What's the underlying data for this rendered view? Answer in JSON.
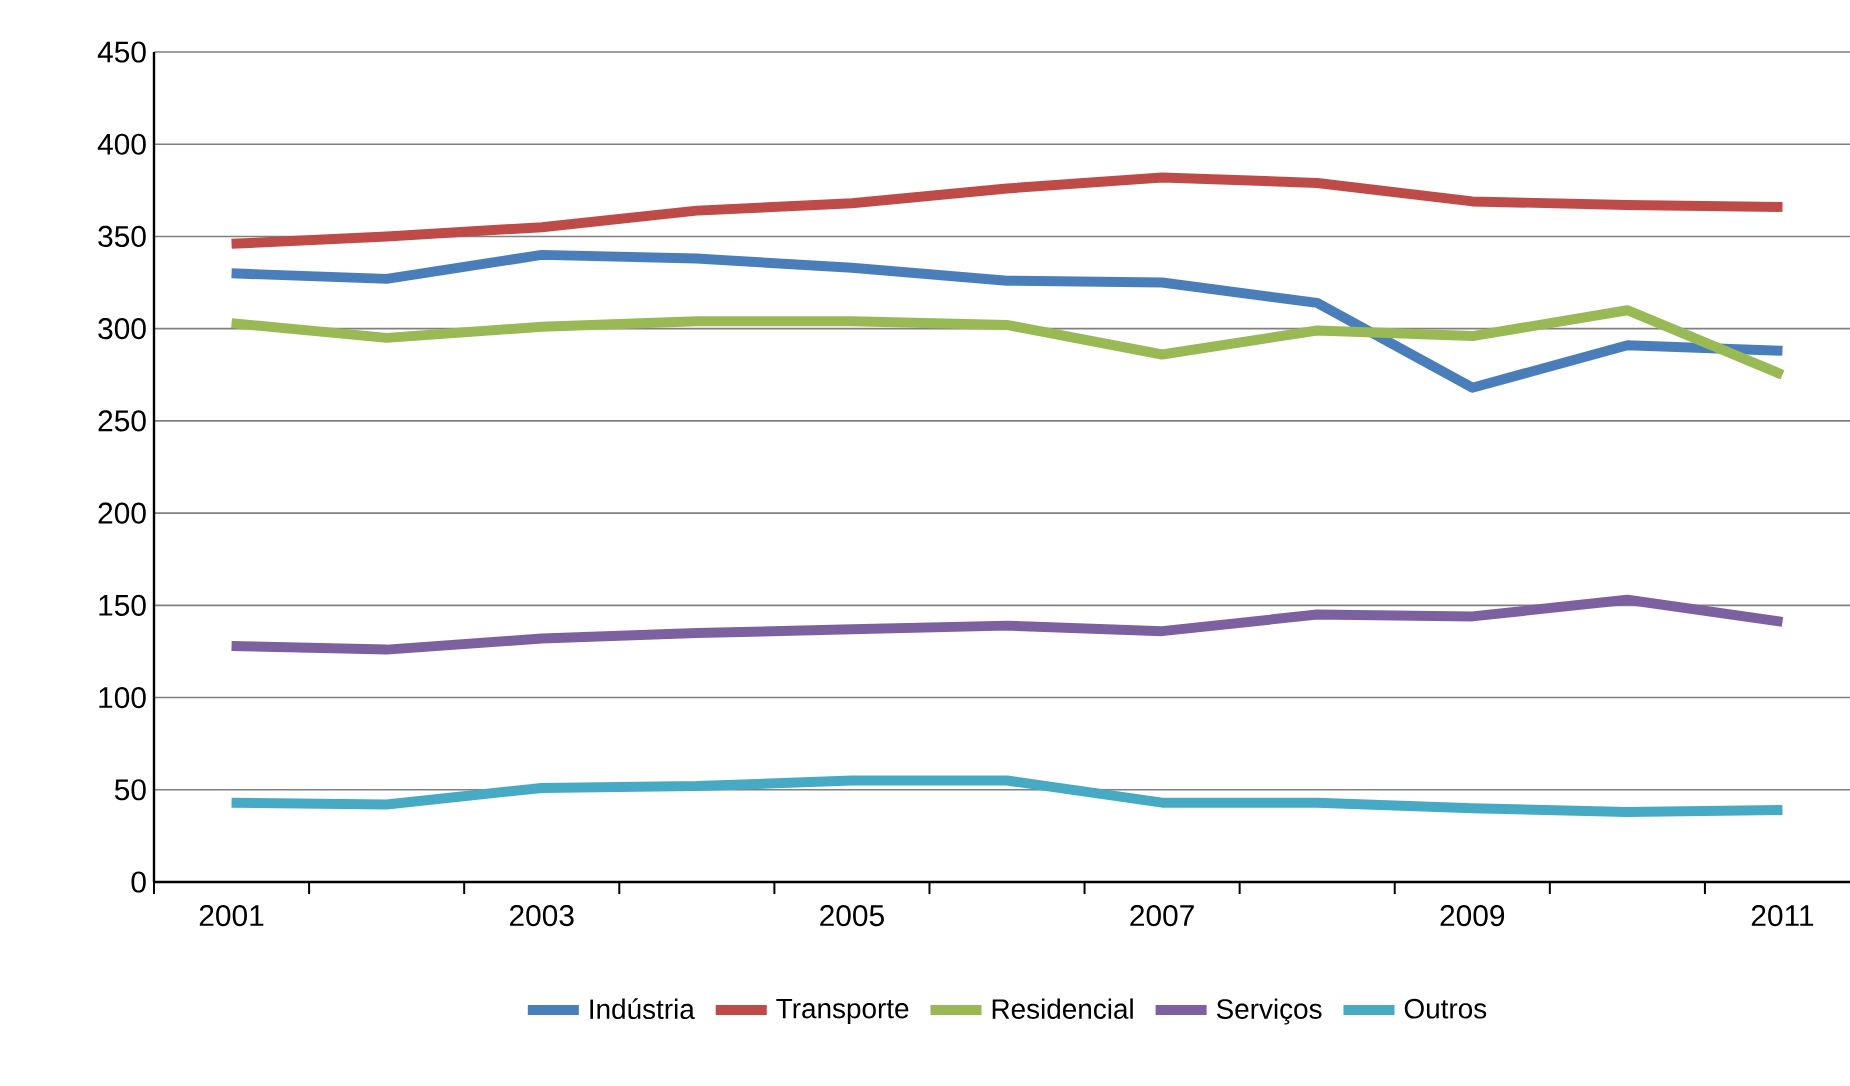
{
  "chart_data": {
    "type": "line",
    "categories": [
      "2001",
      null,
      "2003",
      null,
      "2005",
      null,
      "2007",
      null,
      "2009",
      null,
      "2011"
    ],
    "series": [
      {
        "name": "Indústria",
        "color": "#4a7ebb",
        "values": [
          330,
          327,
          340,
          338,
          333,
          326,
          325,
          314,
          268,
          291,
          288
        ]
      },
      {
        "name": "Transporte",
        "color": "#be4b48",
        "values": [
          346,
          350,
          355,
          364,
          368,
          376,
          382,
          379,
          369,
          367,
          366
        ]
      },
      {
        "name": "Residencial",
        "color": "#98b954",
        "values": [
          303,
          295,
          301,
          304,
          304,
          302,
          286,
          299,
          296,
          310,
          275
        ]
      },
      {
        "name": "Serviços",
        "color": "#7d60a0",
        "values": [
          128,
          126,
          132,
          135,
          137,
          139,
          136,
          145,
          144,
          153,
          141
        ]
      },
      {
        "name": "Outros",
        "color": "#46aac5",
        "values": [
          43,
          42,
          51,
          52,
          55,
          55,
          43,
          43,
          40,
          38,
          39
        ]
      }
    ],
    "ylim": [
      0,
      450
    ],
    "yticks": [
      0,
      50,
      100,
      150,
      200,
      250,
      300,
      350,
      400,
      450
    ],
    "grid": "y",
    "legend": "bottom",
    "marker": "none",
    "line_style": "solid"
  }
}
